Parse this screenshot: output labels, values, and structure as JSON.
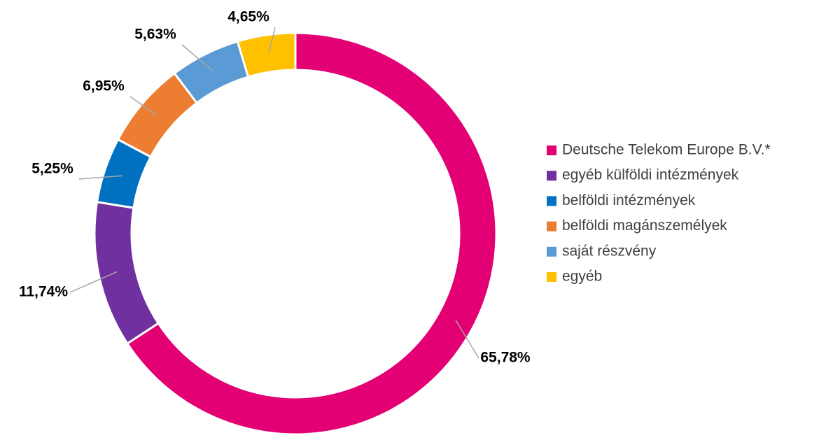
{
  "chart_data": {
    "type": "donut",
    "categories": [
      "Deutsche Telekom Europe B.V.*",
      "egyéb külföldi intézmények",
      "belföldi intézmények",
      "belföldi magánszemélyek",
      "saját részvény",
      "egyéb"
    ],
    "values": [
      65.78,
      11.74,
      5.25,
      6.95,
      5.63,
      4.65
    ],
    "value_labels": [
      "65,78%",
      "11,74%",
      "5,25%",
      "6,95%",
      "5,63%",
      "4,65%"
    ],
    "colors": [
      "#e20074",
      "#7030a0",
      "#0070c0",
      "#ed7d31",
      "#5b9bd5",
      "#ffc000"
    ],
    "legend": "right"
  }
}
